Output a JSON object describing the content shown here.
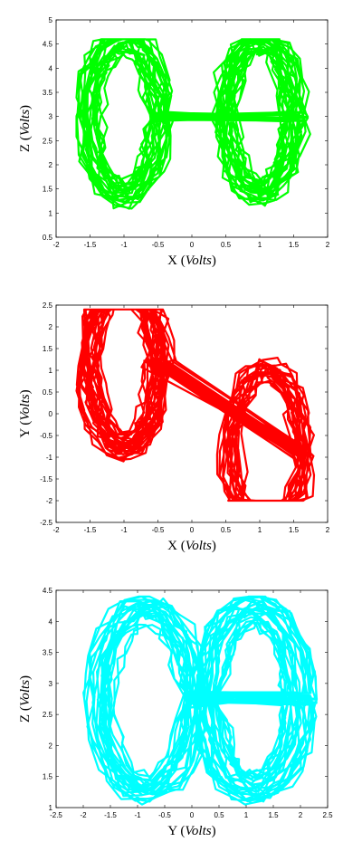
{
  "chart_data": [
    {
      "type": "line",
      "color": "#00ff00",
      "xlabel": "X",
      "xlabel_unit": "Volts",
      "ylabel": "Z",
      "ylabel_unit": "Volts",
      "xlim": [
        -2,
        2
      ],
      "ylim": [
        0.5,
        5
      ],
      "xticks": [
        "-2",
        "-1.5",
        "-1",
        "-0.5",
        "0",
        "0.5",
        "1",
        "1.5",
        "2"
      ],
      "yticks": [
        "0.5",
        "1",
        "1.5",
        "2",
        "2.5",
        "3",
        "3.5",
        "4",
        "4.5",
        "5"
      ],
      "grid": false,
      "attractor": {
        "projection": "x-z",
        "lobe_centers": [
          [
            -1.0,
            3.0
          ],
          [
            1.0,
            3.0
          ]
        ],
        "x_range": [
          -1.7,
          1.9
        ],
        "y_range": [
          0.9,
          4.6
        ],
        "inner_holes": [
          [
            -0.95,
            3.0
          ],
          [
            0.95,
            2.95
          ]
        ]
      }
    },
    {
      "type": "line",
      "color": "#ff0000",
      "xlabel": "X",
      "xlabel_unit": "Volts",
      "ylabel": "Y",
      "ylabel_unit": "Volts",
      "xlim": [
        -2,
        2
      ],
      "ylim": [
        -2.5,
        2.5
      ],
      "xticks": [
        "-2",
        "-1.5",
        "-1",
        "-0.5",
        "0",
        "0.5",
        "1",
        "1.5",
        "2"
      ],
      "yticks": [
        "-2.5",
        "-2",
        "-1.5",
        "-1",
        "-0.5",
        "0",
        "0.5",
        "1",
        "1.5",
        "2",
        "2.5"
      ],
      "grid": false,
      "attractor": {
        "projection": "x-y",
        "lobe_centers": [
          [
            -1.0,
            1.15
          ],
          [
            1.1,
            -0.9
          ]
        ],
        "x_range": [
          -1.7,
          1.8
        ],
        "y_range": [
          -2.0,
          2.4
        ],
        "inner_holes": [
          [
            -1.05,
            1.25
          ],
          [
            1.15,
            -0.95
          ]
        ]
      }
    },
    {
      "type": "line",
      "color": "#00ffff",
      "xlabel": "Y",
      "xlabel_unit": "Volts",
      "ylabel": "Z",
      "ylabel_unit": "Volts",
      "xlim": [
        -2.5,
        2.5
      ],
      "ylim": [
        1,
        4.5
      ],
      "xticks": [
        "-2.5",
        "-2",
        "-1.5",
        "-1",
        "-0.5",
        "0",
        "0.5",
        "1",
        "1.5",
        "2",
        "2.5"
      ],
      "yticks": [
        "1",
        "1.5",
        "2",
        "2.5",
        "3",
        "3.5",
        "4",
        "4.5"
      ],
      "grid": false,
      "attractor": {
        "projection": "y-z",
        "lobe_centers": [
          [
            -0.85,
            2.75
          ],
          [
            1.15,
            2.75
          ]
        ],
        "x_range": [
          -2.1,
          2.3
        ],
        "y_range": [
          1.05,
          4.4
        ],
        "inner_holes": [
          [
            -0.45,
            2.75
          ],
          [
            0.75,
            2.75
          ]
        ]
      }
    }
  ]
}
